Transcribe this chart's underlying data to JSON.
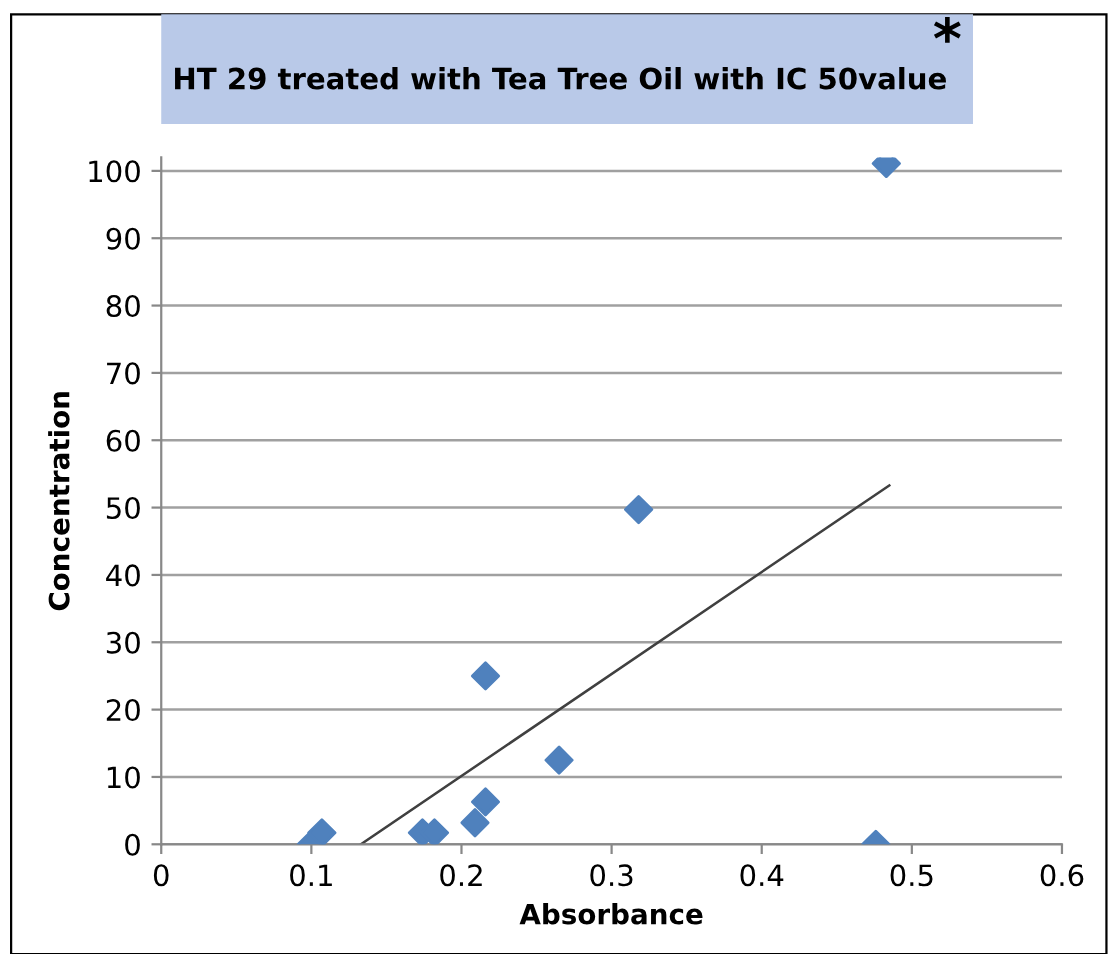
{
  "chart_data": {
    "type": "scatter",
    "title": "HT 29 treated with Tea Tree Oil with IC 50value",
    "xlabel": "Absorbance",
    "ylabel": "Concentration",
    "annotations": [
      "*"
    ],
    "series": [
      {
        "color": "#4f81bd",
        "marker": "diamond",
        "x": [
          0.1,
          0.107,
          0.174,
          0.182,
          0.209,
          0.216,
          0.216,
          0.265,
          0.318,
          0.476,
          0.483
        ],
        "values": [
          0,
          1.7,
          1.7,
          1.7,
          3.2,
          6.3,
          25,
          12.5,
          49.7,
          0,
          101.1
        ]
      },
      {
        "type": "line",
        "color": "#404040",
        "marker": "none",
        "x": [
          0.133,
          0.485
        ],
        "values": [
          0,
          53.3
        ]
      }
    ],
    "xlim": [
      0,
      0.6
    ],
    "ylim": [
      0,
      102
    ],
    "xticks": [
      0,
      0.1,
      0.2,
      0.3,
      0.4,
      0.5,
      0.6
    ],
    "yticks": [
      0,
      10,
      20,
      30,
      40,
      50,
      60,
      70,
      80,
      90,
      100
    ],
    "grid": "y",
    "legend": false
  }
}
